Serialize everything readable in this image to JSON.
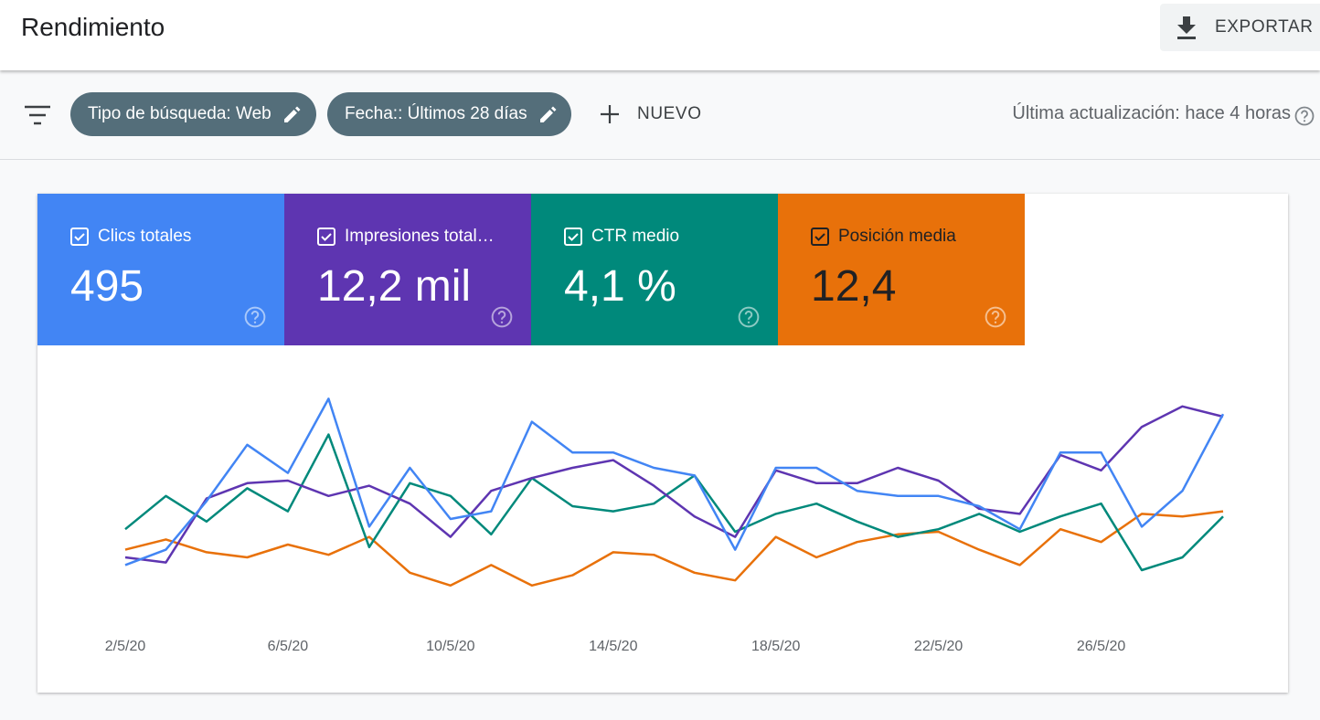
{
  "header": {
    "title": "Rendimiento",
    "export": "EXPORTAR"
  },
  "filters": {
    "items": [
      "Tipo de búsqueda: Web",
      "Fecha:: Últimos 28 días"
    ],
    "new": "NUEVO",
    "last_update": "Última actualización: hace 4 horas"
  },
  "metrics": [
    "495",
    "12,2 mil",
    "4,1 %",
    "12,4"
  ],
  "chart_data": {
    "type": "line",
    "categories": [
      "2/5/20",
      null,
      null,
      null,
      "6/5/20",
      null,
      null,
      null,
      "10/5/20",
      null,
      null,
      null,
      "14/5/20",
      null,
      null,
      null,
      "18/5/20",
      null,
      null,
      null,
      "22/5/20",
      null,
      null,
      null,
      "26/5/20",
      null,
      null,
      null
    ],
    "ylim": [
      0,
      100
    ],
    "series": [
      {
        "name": "Clics totales",
        "color": "#4285f4",
        "values": [
          22,
          28,
          47,
          69,
          58,
          87,
          37,
          60,
          40,
          43,
          78,
          66,
          66,
          60,
          57,
          28,
          60,
          60,
          51,
          49,
          49,
          45,
          36,
          66,
          66,
          37,
          51,
          81
        ]
      },
      {
        "name": "Impresiones total…",
        "color": "#5e35b1",
        "values": [
          25,
          23,
          48,
          54,
          55,
          49,
          53,
          46,
          33,
          51,
          56,
          60,
          63,
          53,
          41,
          33,
          59,
          54,
          54,
          60,
          55,
          44,
          42,
          65,
          59,
          76,
          84,
          80
        ]
      },
      {
        "name": "CTR medio",
        "color": "#00897b",
        "values": [
          36,
          49,
          39,
          52,
          43,
          73,
          29,
          54,
          49,
          34,
          56,
          45,
          43,
          46,
          57,
          35,
          42,
          46,
          39,
          33,
          36,
          42,
          35,
          41,
          46,
          20,
          25,
          41
        ]
      },
      {
        "name": "Posición media",
        "color": "#e8710a",
        "values": [
          28,
          32,
          27,
          25,
          30,
          26,
          33,
          19,
          14,
          22,
          14,
          18,
          27,
          26,
          19,
          16,
          33,
          25,
          31,
          34,
          35,
          28,
          22,
          36,
          31,
          42,
          41,
          43
        ]
      }
    ]
  }
}
